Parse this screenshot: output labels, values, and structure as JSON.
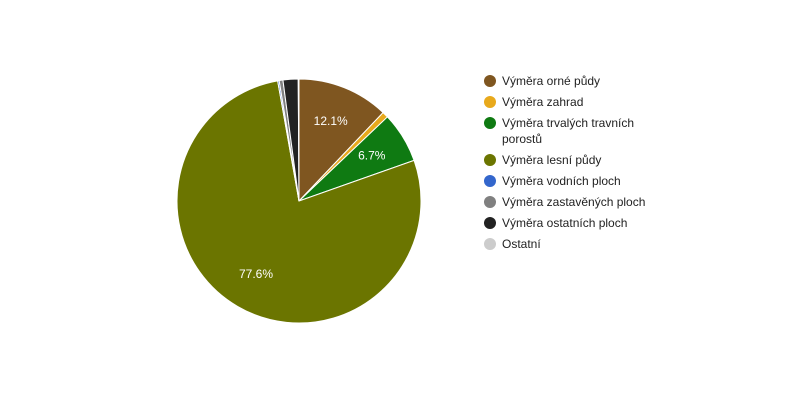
{
  "chart_data": {
    "type": "pie",
    "categories": [
      "Výměra orné půdy",
      "Výměra zahrad",
      "Výměra trvalých travních porostů",
      "Výměra lesní půdy",
      "Výměra vodních ploch",
      "Výměra zastavěných ploch",
      "Výměra ostatních ploch",
      "Ostatní"
    ],
    "values": [
      12.1,
      0.8,
      6.7,
      77.6,
      0.2,
      0.5,
      2.0,
      0.1
    ],
    "value_labels": [
      "12.1%",
      null,
      "6.7%",
      "77.6%",
      null,
      null,
      null,
      null
    ],
    "colors": [
      "#7f5620",
      "#e8a91c",
      "#0f7a12",
      "#6b7500",
      "#3366cc",
      "#808080",
      "#222222",
      "#cccccc"
    ]
  }
}
